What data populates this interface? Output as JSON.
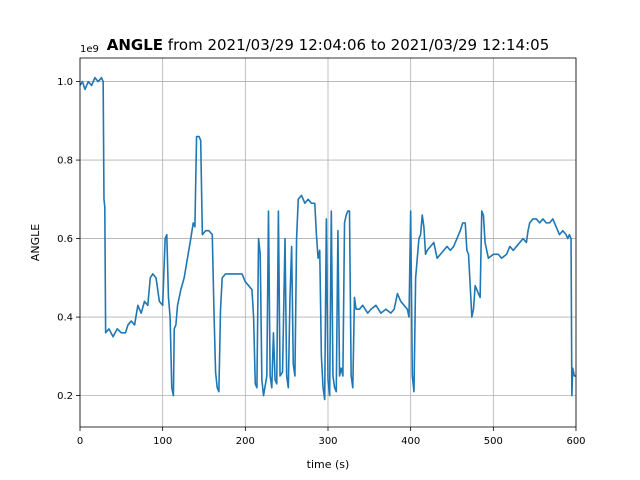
{
  "chart_data": {
    "type": "line",
    "title_bold": "ANGLE",
    "title_rest": " from 2021/03/29 12:04:06 to 2021/03/29 12:14:05",
    "xlabel": "time (s)",
    "ylabel": "ANGLE",
    "y_offset_text": "1e9",
    "xlim": [
      0,
      600
    ],
    "ylim": [
      0.12,
      1.06
    ],
    "grid": true,
    "x_ticks": [
      0,
      100,
      200,
      300,
      400,
      500,
      600
    ],
    "x_tick_labels": [
      "0",
      "100",
      "200",
      "300",
      "400",
      "500",
      "600"
    ],
    "y_ticks": [
      0.2,
      0.4,
      0.6,
      0.8,
      1.0
    ],
    "y_tick_labels": [
      "0.2",
      "0.4",
      "0.6",
      "0.8",
      "1.0"
    ],
    "line_color": "#1f77b4",
    "series": [
      {
        "points": [
          [
            0,
            0.99
          ],
          [
            3,
            1.0
          ],
          [
            6,
            0.98
          ],
          [
            10,
            1.0
          ],
          [
            14,
            0.99
          ],
          [
            18,
            1.01
          ],
          [
            22,
            1.0
          ],
          [
            26,
            1.01
          ],
          [
            28,
            1.0
          ],
          [
            29,
            0.7
          ],
          [
            30,
            0.68
          ],
          [
            31,
            0.36
          ],
          [
            35,
            0.37
          ],
          [
            40,
            0.35
          ],
          [
            45,
            0.37
          ],
          [
            50,
            0.36
          ],
          [
            55,
            0.36
          ],
          [
            58,
            0.38
          ],
          [
            62,
            0.39
          ],
          [
            66,
            0.38
          ],
          [
            70,
            0.43
          ],
          [
            74,
            0.41
          ],
          [
            78,
            0.44
          ],
          [
            82,
            0.43
          ],
          [
            85,
            0.5
          ],
          [
            88,
            0.51
          ],
          [
            92,
            0.5
          ],
          [
            96,
            0.44
          ],
          [
            100,
            0.43
          ],
          [
            103,
            0.6
          ],
          [
            105,
            0.61
          ],
          [
            107,
            0.45
          ],
          [
            109,
            0.4
          ],
          [
            111,
            0.22
          ],
          [
            113,
            0.2
          ],
          [
            114,
            0.37
          ],
          [
            116,
            0.38
          ],
          [
            118,
            0.43
          ],
          [
            122,
            0.47
          ],
          [
            126,
            0.5
          ],
          [
            130,
            0.55
          ],
          [
            134,
            0.6
          ],
          [
            137,
            0.64
          ],
          [
            139,
            0.63
          ],
          [
            141,
            0.86
          ],
          [
            144,
            0.86
          ],
          [
            146,
            0.85
          ],
          [
            148,
            0.61
          ],
          [
            152,
            0.62
          ],
          [
            156,
            0.62
          ],
          [
            160,
            0.61
          ],
          [
            162,
            0.42
          ],
          [
            164,
            0.26
          ],
          [
            166,
            0.22
          ],
          [
            168,
            0.21
          ],
          [
            170,
            0.42
          ],
          [
            172,
            0.5
          ],
          [
            176,
            0.51
          ],
          [
            182,
            0.51
          ],
          [
            188,
            0.51
          ],
          [
            196,
            0.51
          ],
          [
            200,
            0.49
          ],
          [
            204,
            0.48
          ],
          [
            208,
            0.47
          ],
          [
            210,
            0.4
          ],
          [
            212,
            0.23
          ],
          [
            214,
            0.22
          ],
          [
            216,
            0.6
          ],
          [
            218,
            0.56
          ],
          [
            220,
            0.24
          ],
          [
            222,
            0.2
          ],
          [
            226,
            0.25
          ],
          [
            228,
            0.67
          ],
          [
            230,
            0.25
          ],
          [
            232,
            0.22
          ],
          [
            234,
            0.36
          ],
          [
            236,
            0.24
          ],
          [
            238,
            0.23
          ],
          [
            240,
            0.67
          ],
          [
            242,
            0.25
          ],
          [
            245,
            0.26
          ],
          [
            248,
            0.6
          ],
          [
            250,
            0.25
          ],
          [
            252,
            0.22
          ],
          [
            254,
            0.45
          ],
          [
            256,
            0.58
          ],
          [
            258,
            0.28
          ],
          [
            260,
            0.25
          ],
          [
            262,
            0.6
          ],
          [
            264,
            0.7
          ],
          [
            268,
            0.71
          ],
          [
            272,
            0.69
          ],
          [
            276,
            0.7
          ],
          [
            280,
            0.69
          ],
          [
            284,
            0.69
          ],
          [
            286,
            0.61
          ],
          [
            288,
            0.55
          ],
          [
            290,
            0.57
          ],
          [
            292,
            0.3
          ],
          [
            294,
            0.22
          ],
          [
            296,
            0.19
          ],
          [
            298,
            0.65
          ],
          [
            300,
            0.24
          ],
          [
            302,
            0.2
          ],
          [
            304,
            0.67
          ],
          [
            306,
            0.25
          ],
          [
            308,
            0.22
          ],
          [
            310,
            0.21
          ],
          [
            312,
            0.62
          ],
          [
            314,
            0.25
          ],
          [
            316,
            0.27
          ],
          [
            318,
            0.25
          ],
          [
            320,
            0.64
          ],
          [
            322,
            0.66
          ],
          [
            324,
            0.67
          ],
          [
            326,
            0.67
          ],
          [
            328,
            0.25
          ],
          [
            330,
            0.22
          ],
          [
            332,
            0.45
          ],
          [
            334,
            0.42
          ],
          [
            338,
            0.42
          ],
          [
            342,
            0.43
          ],
          [
            348,
            0.41
          ],
          [
            352,
            0.42
          ],
          [
            358,
            0.43
          ],
          [
            364,
            0.41
          ],
          [
            370,
            0.42
          ],
          [
            376,
            0.41
          ],
          [
            380,
            0.42
          ],
          [
            384,
            0.46
          ],
          [
            388,
            0.44
          ],
          [
            392,
            0.43
          ],
          [
            396,
            0.42
          ],
          [
            398,
            0.4
          ],
          [
            400,
            0.67
          ],
          [
            402,
            0.25
          ],
          [
            404,
            0.21
          ],
          [
            406,
            0.5
          ],
          [
            408,
            0.55
          ],
          [
            410,
            0.6
          ],
          [
            412,
            0.61
          ],
          [
            414,
            0.66
          ],
          [
            416,
            0.63
          ],
          [
            418,
            0.56
          ],
          [
            420,
            0.57
          ],
          [
            424,
            0.58
          ],
          [
            428,
            0.59
          ],
          [
            432,
            0.55
          ],
          [
            436,
            0.56
          ],
          [
            440,
            0.57
          ],
          [
            444,
            0.58
          ],
          [
            448,
            0.57
          ],
          [
            452,
            0.58
          ],
          [
            456,
            0.6
          ],
          [
            460,
            0.62
          ],
          [
            463,
            0.64
          ],
          [
            466,
            0.64
          ],
          [
            468,
            0.57
          ],
          [
            470,
            0.56
          ],
          [
            472,
            0.48
          ],
          [
            474,
            0.4
          ],
          [
            476,
            0.42
          ],
          [
            478,
            0.48
          ],
          [
            482,
            0.46
          ],
          [
            484,
            0.45
          ],
          [
            486,
            0.67
          ],
          [
            488,
            0.66
          ],
          [
            490,
            0.59
          ],
          [
            492,
            0.57
          ],
          [
            494,
            0.55
          ],
          [
            500,
            0.56
          ],
          [
            506,
            0.56
          ],
          [
            510,
            0.55
          ],
          [
            516,
            0.56
          ],
          [
            520,
            0.58
          ],
          [
            524,
            0.57
          ],
          [
            528,
            0.58
          ],
          [
            532,
            0.59
          ],
          [
            536,
            0.6
          ],
          [
            540,
            0.59
          ],
          [
            542,
            0.62
          ],
          [
            544,
            0.64
          ],
          [
            548,
            0.65
          ],
          [
            552,
            0.65
          ],
          [
            556,
            0.64
          ],
          [
            560,
            0.65
          ],
          [
            564,
            0.64
          ],
          [
            568,
            0.64
          ],
          [
            572,
            0.65
          ],
          [
            576,
            0.63
          ],
          [
            580,
            0.61
          ],
          [
            584,
            0.62
          ],
          [
            588,
            0.61
          ],
          [
            590,
            0.6
          ],
          [
            592,
            0.61
          ],
          [
            594,
            0.6
          ],
          [
            595,
            0.2
          ],
          [
            596,
            0.27
          ],
          [
            598,
            0.25
          ],
          [
            600,
            0.25
          ]
        ]
      }
    ]
  }
}
